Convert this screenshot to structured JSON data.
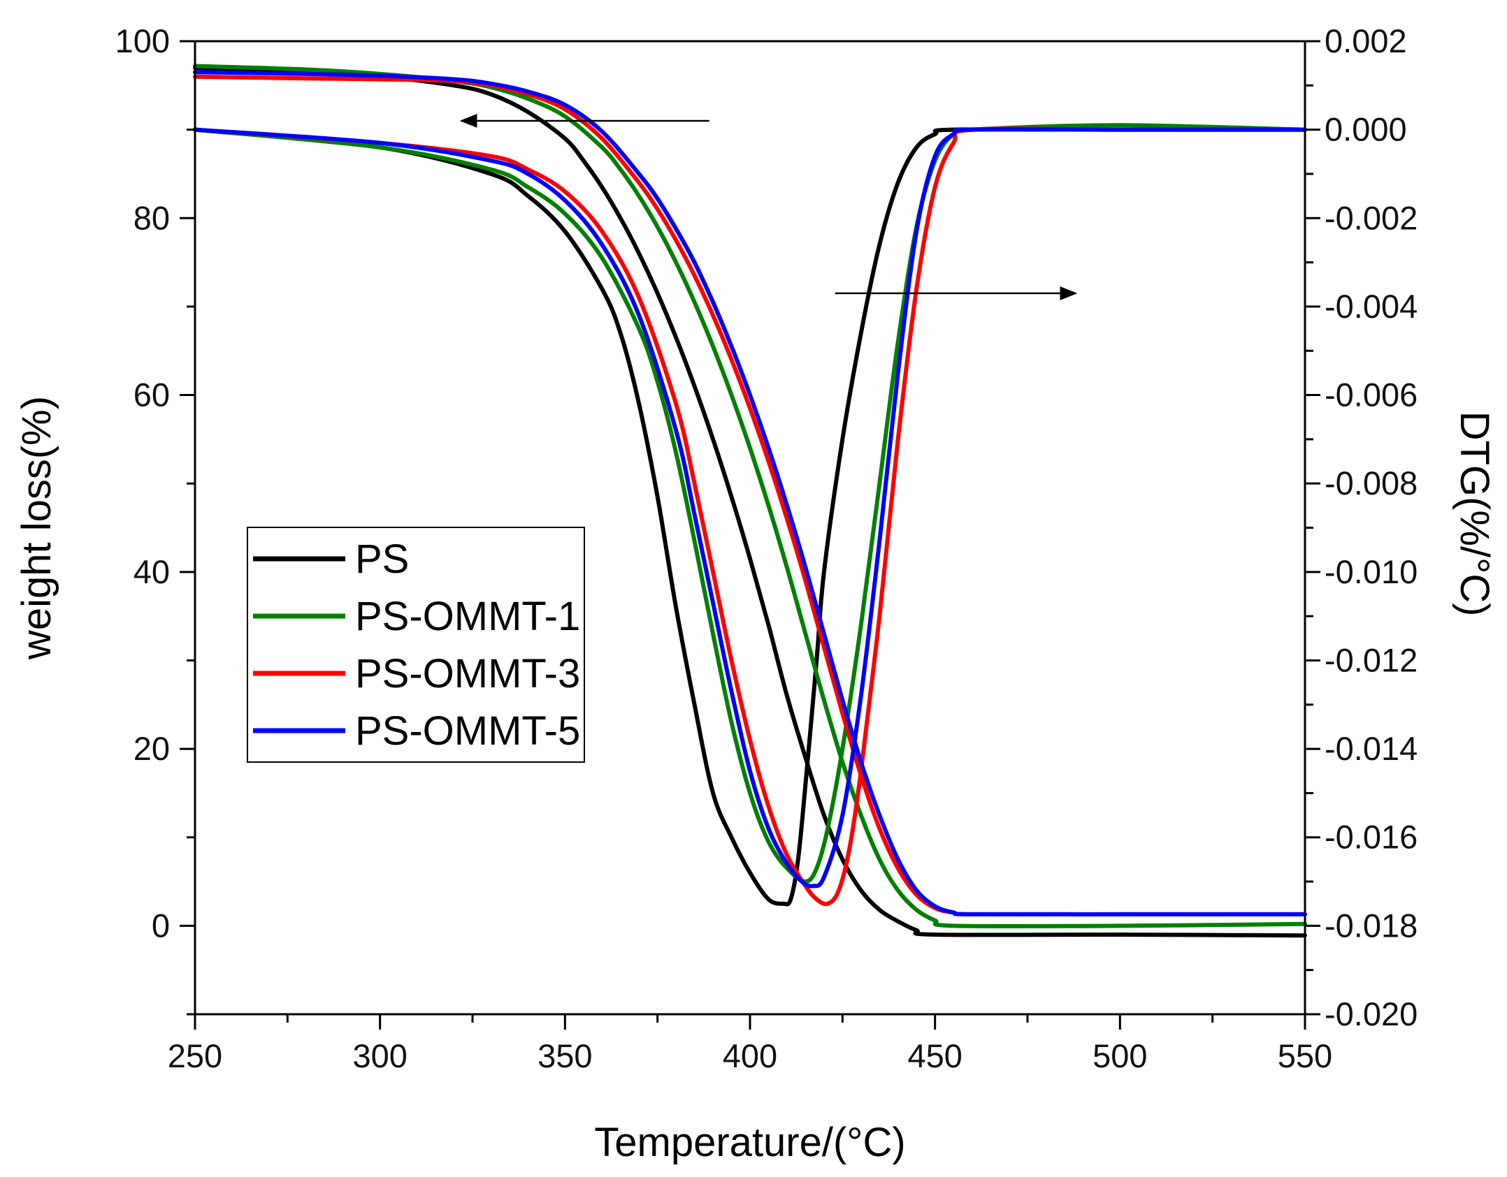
{
  "chart_data": {
    "type": "line",
    "title": "",
    "xlabel": "Temperature/(°C)",
    "ylabel_left": "weight loss(%)",
    "ylabel_right": "DTG(%/°C)",
    "xlim": [
      250,
      550
    ],
    "ylim_left": [
      -10,
      100
    ],
    "ylim_right": [
      -0.02,
      0.002
    ],
    "x_ticks": [
      250,
      300,
      350,
      400,
      450,
      500,
      550
    ],
    "x_tick_labels": [
      "250",
      "300",
      "350",
      "400",
      "450",
      "500",
      "550"
    ],
    "y_left_ticks": [
      0,
      20,
      40,
      60,
      80,
      100
    ],
    "y_left_tick_labels": [
      "0",
      "20",
      "40",
      "60",
      "80",
      "100"
    ],
    "y_right_ticks": [
      0.002,
      0.0,
      -0.002,
      -0.004,
      -0.006,
      -0.008,
      -0.01,
      -0.012,
      -0.014,
      -0.016,
      -0.018,
      -0.02
    ],
    "y_right_tick_labels": [
      "0.002",
      "0.000",
      "-0.002",
      "-0.004",
      "-0.006",
      "-0.008",
      "-0.010",
      "-0.012",
      "-0.014",
      "-0.016",
      "-0.018",
      "-0.020"
    ],
    "legend_position": "center-left",
    "annotations": [
      {
        "type": "arrow",
        "direction": "left",
        "meaning": "TG curves use left axis",
        "from": [
          389,
          91
        ],
        "to": [
          322,
          91
        ]
      },
      {
        "type": "arrow",
        "direction": "right",
        "meaning": "DTG curves use right axis",
        "from": [
          423,
          71.5
        ],
        "to": [
          488,
          71.5
        ]
      }
    ],
    "series": [
      {
        "name": "PS",
        "color": "#000000",
        "tg": {
          "axis": "left",
          "x": [
            250,
            280,
            300,
            320,
            330,
            340,
            350,
            355,
            360,
            365,
            370,
            375,
            380,
            385,
            390,
            395,
            400,
            405,
            410,
            415,
            420,
            425,
            430,
            435,
            440,
            445,
            450,
            500,
            550
          ],
          "y": [
            97,
            96.5,
            96,
            95,
            94,
            92,
            89,
            86.5,
            83.5,
            80,
            76,
            71.5,
            66.5,
            61,
            55,
            48.5,
            41.5,
            34,
            26,
            19,
            12.5,
            7.5,
            4,
            1.8,
            0.5,
            -0.5,
            -1,
            -1,
            -1.1
          ]
        },
        "dtg": {
          "axis": "right",
          "x": [
            250,
            300,
            330,
            340,
            350,
            360,
            365,
            370,
            375,
            380,
            385,
            390,
            395,
            400,
            405,
            409,
            411,
            413,
            415,
            418,
            420,
            425,
            430,
            435,
            440,
            445,
            450,
            455,
            500,
            550
          ],
          "y": [
            0.0,
            -0.0004,
            -0.001,
            -0.0015,
            -0.0023,
            -0.0036,
            -0.0046,
            -0.0062,
            -0.0083,
            -0.0108,
            -0.013,
            -0.015,
            -0.016,
            -0.0168,
            -0.0174,
            -0.0175,
            -0.0174,
            -0.0165,
            -0.0148,
            -0.012,
            -0.01,
            -0.007,
            -0.0046,
            -0.0026,
            -0.0012,
            -0.0004,
            -0.0001,
            0.0,
            0.0,
            0.0
          ]
        }
      },
      {
        "name": "PS-OMMT-1",
        "color": "#008000",
        "tg": {
          "axis": "left",
          "x": [
            250,
            280,
            300,
            320,
            330,
            340,
            350,
            360,
            365,
            370,
            375,
            380,
            385,
            390,
            395,
            400,
            405,
            410,
            415,
            420,
            425,
            430,
            435,
            440,
            445,
            450,
            455,
            500,
            550
          ],
          "y": [
            97.2,
            96.8,
            96.3,
            95.5,
            94.8,
            93.5,
            91.5,
            88,
            85.5,
            82.5,
            79,
            75,
            70.5,
            65.5,
            60,
            54,
            47.5,
            40.5,
            33,
            25.5,
            18.5,
            12.5,
            7.5,
            4,
            1.8,
            0.6,
            0,
            0,
            0.2
          ]
        },
        "dtg": {
          "axis": "right",
          "x": [
            250,
            300,
            330,
            340,
            350,
            360,
            370,
            375,
            380,
            385,
            390,
            395,
            400,
            405,
            410,
            415,
            418,
            421,
            425,
            430,
            435,
            440,
            445,
            450,
            455,
            460,
            500,
            550
          ],
          "y": [
            0.0,
            -0.0004,
            -0.0009,
            -0.0013,
            -0.0019,
            -0.0029,
            -0.0045,
            -0.0057,
            -0.0073,
            -0.0093,
            -0.0114,
            -0.0134,
            -0.015,
            -0.0161,
            -0.0167,
            -0.017,
            -0.0167,
            -0.0158,
            -0.014,
            -0.0112,
            -0.008,
            -0.0048,
            -0.0022,
            -0.0007,
            -0.0001,
            0.0,
            0.0001,
            0.0
          ]
        }
      },
      {
        "name": "PS-OMMT-3",
        "color": "#ff0000",
        "tg": {
          "axis": "left",
          "x": [
            250,
            280,
            300,
            320,
            330,
            340,
            350,
            360,
            370,
            375,
            380,
            385,
            390,
            395,
            400,
            405,
            410,
            415,
            420,
            425,
            430,
            435,
            440,
            445,
            450,
            455,
            460,
            500,
            550
          ],
          "y": [
            96,
            95.8,
            95.7,
            95.5,
            95,
            94,
            92.3,
            89,
            84,
            81,
            77.5,
            73.5,
            69,
            64,
            58.5,
            52.5,
            46,
            39,
            31.5,
            24,
            17,
            11,
            6.5,
            3.5,
            2,
            1.5,
            1.3,
            1.3,
            1.3
          ]
        },
        "dtg": {
          "axis": "right",
          "x": [
            250,
            300,
            330,
            340,
            350,
            360,
            370,
            380,
            385,
            390,
            395,
            400,
            405,
            410,
            415,
            418,
            421,
            424,
            427,
            430,
            435,
            440,
            445,
            450,
            455,
            460,
            500,
            550
          ],
          "y": [
            0.0,
            -0.0003,
            -0.0006,
            -0.0009,
            -0.0014,
            -0.0023,
            -0.0038,
            -0.0062,
            -0.008,
            -0.01,
            -0.012,
            -0.0138,
            -0.0153,
            -0.0164,
            -0.0171,
            -0.0174,
            -0.0175,
            -0.0172,
            -0.0162,
            -0.0145,
            -0.011,
            -0.007,
            -0.0036,
            -0.0013,
            -0.0003,
            0.0,
            0.0,
            0.0
          ]
        }
      },
      {
        "name": "PS-OMMT-5",
        "color": "#0000ff",
        "tg": {
          "axis": "left",
          "x": [
            250,
            280,
            300,
            320,
            330,
            340,
            350,
            360,
            370,
            375,
            380,
            385,
            390,
            395,
            400,
            405,
            410,
            415,
            420,
            425,
            430,
            435,
            440,
            445,
            450,
            455,
            460,
            500,
            550
          ],
          "y": [
            96.5,
            96.3,
            96.1,
            95.7,
            95.2,
            94.3,
            92.8,
            89.8,
            85,
            82.2,
            78.8,
            75,
            70.5,
            65.5,
            60,
            54,
            47.5,
            40.5,
            33,
            25.5,
            18.5,
            12.5,
            7.5,
            4,
            2.2,
            1.5,
            1.3,
            1.3,
            1.3
          ]
        },
        "dtg": {
          "axis": "right",
          "x": [
            250,
            300,
            330,
            340,
            350,
            360,
            370,
            380,
            385,
            390,
            395,
            400,
            405,
            410,
            414,
            417,
            420,
            425,
            430,
            435,
            440,
            445,
            450,
            455,
            460,
            500,
            550
          ],
          "y": [
            0.0,
            -0.0003,
            -0.0007,
            -0.001,
            -0.0016,
            -0.0026,
            -0.0042,
            -0.0068,
            -0.0087,
            -0.0107,
            -0.0127,
            -0.0145,
            -0.0158,
            -0.0166,
            -0.017,
            -0.0171,
            -0.0169,
            -0.0155,
            -0.0128,
            -0.0093,
            -0.0055,
            -0.0023,
            -0.0006,
            -0.0001,
            0.0,
            0.0,
            0.0
          ]
        }
      }
    ]
  }
}
